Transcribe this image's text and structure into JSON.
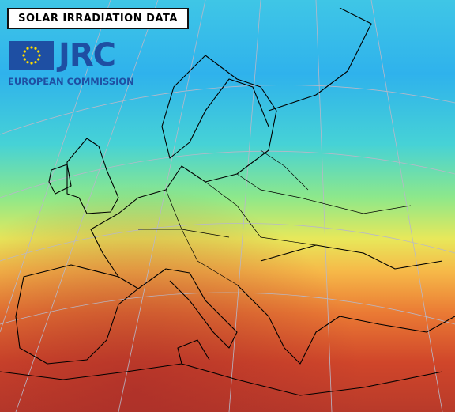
{
  "header": {
    "title": "SOLAR IRRADIATION DATA"
  },
  "logo": {
    "name": "JRC",
    "subtitle": "EUROPEAN COMMISSION"
  }
}
